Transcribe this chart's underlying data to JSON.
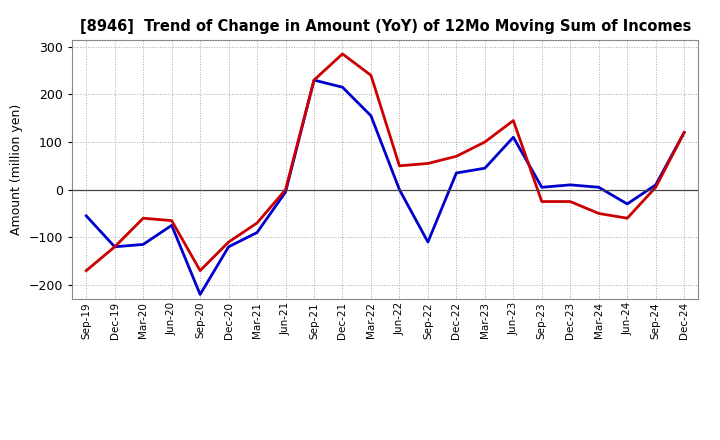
{
  "title": "[8946]  Trend of Change in Amount (YoY) of 12Mo Moving Sum of Incomes",
  "ylabel": "Amount (million yen)",
  "x_labels": [
    "Sep-19",
    "Dec-19",
    "Mar-20",
    "Jun-20",
    "Sep-20",
    "Dec-20",
    "Mar-21",
    "Jun-21",
    "Sep-21",
    "Dec-21",
    "Mar-22",
    "Jun-22",
    "Sep-22",
    "Dec-22",
    "Mar-23",
    "Jun-23",
    "Sep-23",
    "Dec-23",
    "Mar-24",
    "Jun-24",
    "Sep-24",
    "Dec-24"
  ],
  "ordinary_income": [
    -55,
    -120,
    -115,
    -75,
    -220,
    -120,
    -90,
    -5,
    230,
    215,
    155,
    0,
    -110,
    35,
    45,
    110,
    5,
    10,
    5,
    -30,
    10,
    120
  ],
  "net_income": [
    -170,
    -120,
    -60,
    -65,
    -170,
    -110,
    -70,
    0,
    230,
    285,
    240,
    50,
    55,
    70,
    100,
    145,
    -25,
    -25,
    -50,
    -60,
    5,
    120
  ],
  "ordinary_color": "#0000cc",
  "net_color": "#cc0000",
  "line_width": 2.0,
  "ylim": [
    -230,
    315
  ],
  "yticks": [
    -200,
    -100,
    0,
    100,
    200,
    300
  ],
  "bg_color": "#ffffff",
  "grid_color": "#aaaaaa"
}
